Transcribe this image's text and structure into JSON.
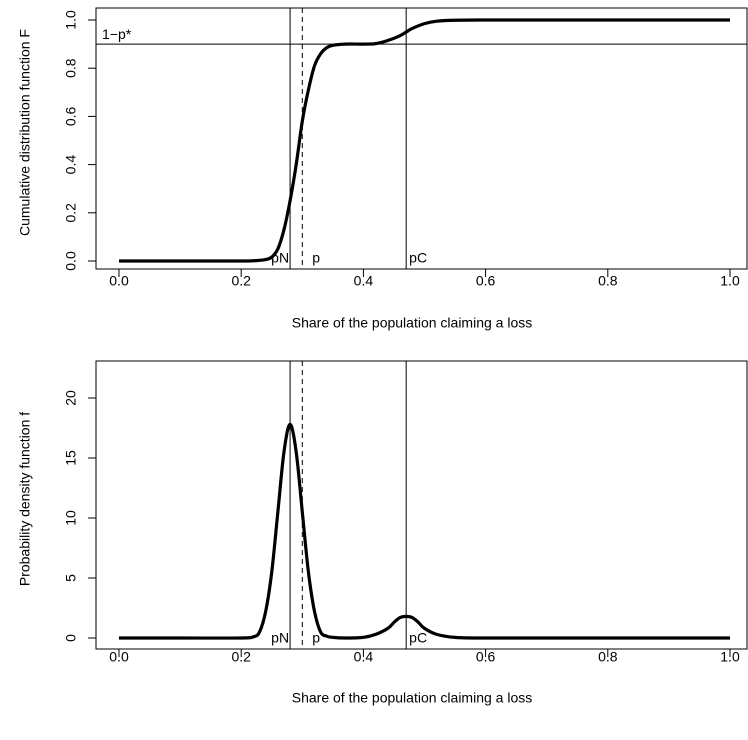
{
  "chart_data": [
    {
      "type": "line",
      "title": "",
      "xlabel": "Share of the population claiming a loss",
      "ylabel": "Cumulative distribution function F",
      "xlim": [
        0,
        1
      ],
      "ylim": [
        0,
        1
      ],
      "xticks": [
        0,
        0.2,
        0.4,
        0.6,
        0.8,
        1
      ],
      "xtick_labels": [
        "0.0",
        "0.2",
        "0.4",
        "0.6",
        "0.8",
        "1.0"
      ],
      "yticks": [
        0,
        0.2,
        0.4,
        0.6,
        0.8,
        1
      ],
      "ytick_labels": [
        "0.0",
        "0.2",
        "0.4",
        "0.6",
        "0.8",
        "1.0"
      ],
      "series": [
        {
          "x": [
            0,
            0.05,
            0.1,
            0.15,
            0.2,
            0.22,
            0.24,
            0.25,
            0.26,
            0.27,
            0.28,
            0.29,
            0.3,
            0.31,
            0.32,
            0.33,
            0.34,
            0.35,
            0.37,
            0.4,
            0.42,
            0.44,
            0.46,
            0.47,
            0.48,
            0.5,
            0.52,
            0.55,
            0.6,
            0.7,
            0.8,
            0.9,
            1
          ],
          "y": [
            0,
            0,
            0,
            0,
            0,
            0.001,
            0.006,
            0.016,
            0.05,
            0.13,
            0.25,
            0.4,
            0.58,
            0.71,
            0.81,
            0.86,
            0.885,
            0.895,
            0.9,
            0.9,
            0.902,
            0.915,
            0.935,
            0.95,
            0.965,
            0.985,
            0.995,
            0.999,
            1,
            1,
            1,
            1,
            1
          ]
        }
      ],
      "hlines": [
        {
          "y": 0.9,
          "label": "1−p*"
        }
      ],
      "vlines": [
        {
          "x": 0.28,
          "label": "pN",
          "style": "solid"
        },
        {
          "x": 0.3,
          "label": "p",
          "style": "dashed"
        },
        {
          "x": 0.47,
          "label": "pC",
          "style": "solid"
        }
      ]
    },
    {
      "type": "line",
      "title": "",
      "xlabel": "Share of the population claiming a loss",
      "ylabel": "Probability density function f",
      "xlim": [
        0,
        1
      ],
      "ylim": [
        0,
        20
      ],
      "xticks": [
        0,
        0.2,
        0.4,
        0.6,
        0.8,
        1
      ],
      "xtick_labels": [
        "0.0",
        "0.2",
        "0.4",
        "0.6",
        "0.8",
        "1.0"
      ],
      "yticks": [
        0,
        5,
        10,
        15,
        20
      ],
      "ytick_labels": [
        "0",
        "5",
        "10",
        "15",
        "20"
      ],
      "series": [
        {
          "x": [
            0,
            0.1,
            0.2,
            0.22,
            0.23,
            0.24,
            0.25,
            0.26,
            0.27,
            0.28,
            0.29,
            0.3,
            0.31,
            0.32,
            0.33,
            0.34,
            0.35,
            0.37,
            0.4,
            0.42,
            0.44,
            0.45,
            0.46,
            0.47,
            0.48,
            0.49,
            0.5,
            0.52,
            0.55,
            0.6,
            0.8,
            1
          ],
          "y": [
            0,
            0,
            0,
            0.1,
            0.5,
            2.2,
            5.5,
            10.5,
            15.5,
            17.8,
            15.5,
            10.5,
            5.5,
            2.2,
            0.5,
            0.15,
            0.05,
            0,
            0.05,
            0.3,
            0.8,
            1.3,
            1.7,
            1.8,
            1.7,
            1.3,
            0.8,
            0.3,
            0.05,
            0,
            0,
            0
          ]
        }
      ],
      "vlines": [
        {
          "x": 0.28,
          "label": "pN",
          "style": "solid"
        },
        {
          "x": 0.3,
          "label": "p",
          "style": "dashed"
        },
        {
          "x": 0.47,
          "label": "pC",
          "style": "solid"
        }
      ]
    }
  ]
}
